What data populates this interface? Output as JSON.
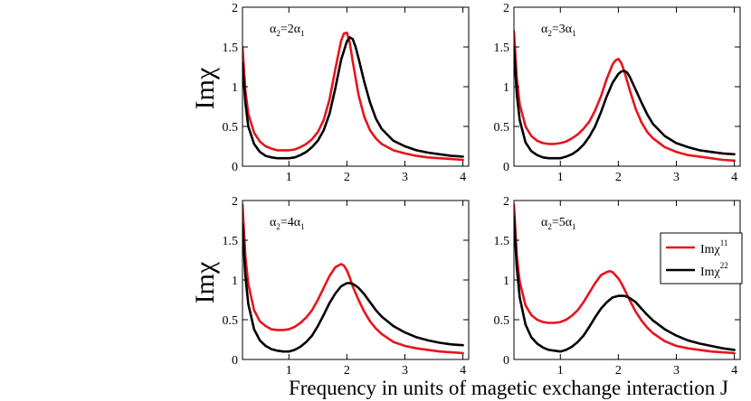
{
  "figure": {
    "xlabel": "Frequency in units of magetic exchange interaction J",
    "ylabel_top": "Imχ",
    "ylabel_bottom": "Imχ"
  },
  "legend": {
    "entries": [
      {
        "main": "Imχ",
        "sup": "11",
        "color": "#e8141c"
      },
      {
        "main": "Imχ",
        "sup": "22",
        "color": "#000000"
      }
    ]
  },
  "chart_data": [
    {
      "type": "line",
      "panel_label": {
        "a": "α",
        "sub1": "2",
        "eq": "=2α",
        "sub2": "1"
      },
      "xlim": [
        0.2,
        4.1
      ],
      "ylim": [
        0,
        2
      ],
      "xticks": [
        1,
        2,
        3,
        4
      ],
      "yticks": [
        0,
        0.5,
        1,
        1.5,
        2
      ],
      "xtick_labels": [
        "1",
        "2",
        "3",
        "4"
      ],
      "ytick_labels": [
        "0",
        "0.5",
        "1",
        "1.5",
        "2"
      ],
      "series": [
        {
          "name": "Imχ11",
          "color": "#e8141c",
          "x": [
            0.2,
            0.25,
            0.3,
            0.4,
            0.5,
            0.6,
            0.7,
            0.8,
            0.9,
            1.0,
            1.1,
            1.2,
            1.3,
            1.4,
            1.5,
            1.6,
            1.7,
            1.8,
            1.9,
            1.95,
            2.0,
            2.05,
            2.1,
            2.2,
            2.3,
            2.4,
            2.5,
            2.6,
            2.8,
            3.0,
            3.2,
            3.4,
            3.6,
            3.8,
            4.0
          ],
          "y": [
            1.5,
            0.95,
            0.66,
            0.42,
            0.31,
            0.25,
            0.22,
            0.2,
            0.2,
            0.2,
            0.21,
            0.24,
            0.28,
            0.34,
            0.43,
            0.58,
            0.84,
            1.22,
            1.58,
            1.67,
            1.68,
            1.55,
            1.32,
            0.9,
            0.62,
            0.45,
            0.35,
            0.28,
            0.2,
            0.16,
            0.13,
            0.11,
            0.1,
            0.09,
            0.08
          ]
        },
        {
          "name": "Imχ22",
          "color": "#000000",
          "x": [
            0.2,
            0.25,
            0.3,
            0.4,
            0.5,
            0.6,
            0.7,
            0.8,
            0.9,
            1.0,
            1.1,
            1.2,
            1.3,
            1.4,
            1.5,
            1.6,
            1.7,
            1.8,
            1.9,
            2.0,
            2.05,
            2.1,
            2.15,
            2.2,
            2.3,
            2.4,
            2.5,
            2.6,
            2.8,
            3.0,
            3.2,
            3.4,
            3.6,
            3.8,
            4.0
          ],
          "y": [
            1.3,
            0.8,
            0.5,
            0.28,
            0.18,
            0.13,
            0.11,
            0.1,
            0.1,
            0.1,
            0.11,
            0.14,
            0.18,
            0.24,
            0.32,
            0.45,
            0.66,
            0.98,
            1.34,
            1.57,
            1.62,
            1.6,
            1.5,
            1.36,
            1.06,
            0.8,
            0.6,
            0.47,
            0.32,
            0.25,
            0.2,
            0.17,
            0.15,
            0.13,
            0.12
          ]
        }
      ]
    },
    {
      "type": "line",
      "panel_label": {
        "a": "α",
        "sub1": "2",
        "eq": "=3α",
        "sub2": "1"
      },
      "xlim": [
        0.2,
        4.1
      ],
      "ylim": [
        0,
        2
      ],
      "xticks": [
        1,
        2,
        3,
        4
      ],
      "yticks": [
        0,
        0.5,
        1,
        1.5,
        2
      ],
      "xtick_labels": [
        "1",
        "2",
        "3",
        "4"
      ],
      "ytick_labels": [
        "0",
        "0.5",
        "1",
        "1.5",
        "2"
      ],
      "series": [
        {
          "name": "Imχ11",
          "color": "#e8141c",
          "x": [
            0.2,
            0.25,
            0.3,
            0.4,
            0.5,
            0.6,
            0.7,
            0.8,
            0.9,
            1.0,
            1.1,
            1.2,
            1.3,
            1.4,
            1.5,
            1.6,
            1.7,
            1.8,
            1.9,
            1.95,
            2.0,
            2.05,
            2.1,
            2.2,
            2.3,
            2.4,
            2.5,
            2.6,
            2.8,
            3.0,
            3.2,
            3.4,
            3.6,
            3.8,
            4.0
          ],
          "y": [
            1.7,
            1.1,
            0.78,
            0.5,
            0.38,
            0.32,
            0.29,
            0.28,
            0.28,
            0.29,
            0.31,
            0.35,
            0.4,
            0.47,
            0.56,
            0.7,
            0.88,
            1.1,
            1.28,
            1.33,
            1.35,
            1.3,
            1.2,
            0.95,
            0.72,
            0.55,
            0.43,
            0.35,
            0.24,
            0.18,
            0.14,
            0.12,
            0.1,
            0.08,
            0.07
          ]
        },
        {
          "name": "Imχ22",
          "color": "#000000",
          "x": [
            0.2,
            0.25,
            0.3,
            0.4,
            0.5,
            0.6,
            0.7,
            0.8,
            0.9,
            1.0,
            1.1,
            1.2,
            1.3,
            1.4,
            1.5,
            1.6,
            1.7,
            1.8,
            1.9,
            2.0,
            2.05,
            2.1,
            2.15,
            2.2,
            2.3,
            2.4,
            2.5,
            2.6,
            2.8,
            3.0,
            3.2,
            3.4,
            3.6,
            3.8,
            4.0
          ],
          "y": [
            1.5,
            0.9,
            0.58,
            0.3,
            0.19,
            0.14,
            0.11,
            0.1,
            0.1,
            0.1,
            0.12,
            0.15,
            0.2,
            0.27,
            0.37,
            0.5,
            0.68,
            0.88,
            1.05,
            1.16,
            1.19,
            1.2,
            1.18,
            1.12,
            0.96,
            0.8,
            0.65,
            0.53,
            0.38,
            0.29,
            0.24,
            0.2,
            0.18,
            0.16,
            0.15
          ]
        }
      ]
    },
    {
      "type": "line",
      "panel_label": {
        "a": "α",
        "sub1": "2",
        "eq": "=4α",
        "sub2": "1"
      },
      "xlim": [
        0.2,
        4.1
      ],
      "ylim": [
        0,
        2
      ],
      "xticks": [
        1,
        2,
        3,
        4
      ],
      "yticks": [
        0,
        0.5,
        1,
        1.5,
        2
      ],
      "xtick_labels": [
        "1",
        "2",
        "3",
        "4"
      ],
      "ytick_labels": [
        "0",
        "0.5",
        "1",
        "1.5",
        "2"
      ],
      "series": [
        {
          "name": "Imχ11",
          "color": "#e8141c",
          "x": [
            0.2,
            0.25,
            0.3,
            0.4,
            0.5,
            0.6,
            0.7,
            0.8,
            0.9,
            1.0,
            1.1,
            1.2,
            1.3,
            1.4,
            1.5,
            1.6,
            1.7,
            1.8,
            1.9,
            1.95,
            2.0,
            2.05,
            2.1,
            2.2,
            2.3,
            2.4,
            2.5,
            2.6,
            2.8,
            3.0,
            3.2,
            3.4,
            3.6,
            3.8,
            4.0
          ],
          "y": [
            1.95,
            1.3,
            0.95,
            0.62,
            0.48,
            0.42,
            0.38,
            0.37,
            0.37,
            0.38,
            0.41,
            0.46,
            0.53,
            0.62,
            0.75,
            0.9,
            1.05,
            1.16,
            1.2,
            1.18,
            1.12,
            1.03,
            0.92,
            0.75,
            0.6,
            0.48,
            0.39,
            0.32,
            0.22,
            0.17,
            0.14,
            0.12,
            0.1,
            0.09,
            0.08
          ]
        },
        {
          "name": "Imχ22",
          "color": "#000000",
          "x": [
            0.2,
            0.25,
            0.3,
            0.4,
            0.5,
            0.6,
            0.7,
            0.8,
            0.9,
            1.0,
            1.1,
            1.2,
            1.3,
            1.4,
            1.5,
            1.6,
            1.7,
            1.8,
            1.9,
            2.0,
            2.05,
            2.1,
            2.15,
            2.2,
            2.3,
            2.4,
            2.5,
            2.6,
            2.8,
            3.0,
            3.2,
            3.4,
            3.6,
            3.8,
            4.0
          ],
          "y": [
            1.7,
            1.05,
            0.7,
            0.38,
            0.24,
            0.17,
            0.13,
            0.11,
            0.1,
            0.1,
            0.12,
            0.16,
            0.22,
            0.3,
            0.42,
            0.56,
            0.71,
            0.83,
            0.92,
            0.96,
            0.96,
            0.95,
            0.93,
            0.9,
            0.82,
            0.72,
            0.62,
            0.54,
            0.42,
            0.34,
            0.28,
            0.24,
            0.21,
            0.19,
            0.18
          ]
        }
      ]
    },
    {
      "type": "line",
      "panel_label": {
        "a": "α",
        "sub1": "2",
        "eq": "=5α",
        "sub2": "1"
      },
      "xlim": [
        0.2,
        4.1
      ],
      "ylim": [
        0,
        2
      ],
      "xticks": [
        1,
        2,
        3,
        4
      ],
      "yticks": [
        0,
        0.5,
        1,
        1.5,
        2
      ],
      "xtick_labels": [
        "1",
        "2",
        "3",
        "4"
      ],
      "ytick_labels": [
        "0",
        "0.5",
        "1",
        "1.5",
        "2"
      ],
      "series": [
        {
          "name": "Imχ11",
          "color": "#e8141c",
          "x": [
            0.2,
            0.25,
            0.3,
            0.4,
            0.5,
            0.6,
            0.7,
            0.8,
            0.9,
            1.0,
            1.1,
            1.2,
            1.3,
            1.4,
            1.5,
            1.6,
            1.7,
            1.8,
            1.85,
            1.9,
            2.0,
            2.05,
            2.1,
            2.2,
            2.3,
            2.4,
            2.5,
            2.6,
            2.8,
            3.0,
            3.2,
            3.4,
            3.6,
            3.8,
            4.0
          ],
          "y": [
            1.95,
            1.3,
            0.98,
            0.68,
            0.56,
            0.5,
            0.47,
            0.46,
            0.46,
            0.47,
            0.5,
            0.55,
            0.62,
            0.72,
            0.84,
            0.96,
            1.06,
            1.1,
            1.11,
            1.1,
            1.02,
            0.96,
            0.89,
            0.74,
            0.6,
            0.49,
            0.4,
            0.33,
            0.23,
            0.17,
            0.14,
            0.12,
            0.1,
            0.09,
            0.08
          ]
        },
        {
          "name": "Imχ22",
          "color": "#000000",
          "x": [
            0.2,
            0.25,
            0.3,
            0.4,
            0.5,
            0.6,
            0.7,
            0.8,
            0.9,
            1.0,
            1.1,
            1.2,
            1.3,
            1.4,
            1.5,
            1.6,
            1.7,
            1.8,
            1.9,
            2.0,
            2.05,
            2.1,
            2.15,
            2.2,
            2.3,
            2.4,
            2.5,
            2.6,
            2.8,
            3.0,
            3.2,
            3.4,
            3.6,
            3.8,
            4.0
          ],
          "y": [
            1.8,
            1.15,
            0.78,
            0.44,
            0.28,
            0.2,
            0.15,
            0.12,
            0.11,
            0.1,
            0.12,
            0.16,
            0.22,
            0.3,
            0.41,
            0.53,
            0.64,
            0.72,
            0.78,
            0.8,
            0.8,
            0.8,
            0.79,
            0.77,
            0.72,
            0.64,
            0.56,
            0.49,
            0.38,
            0.3,
            0.24,
            0.2,
            0.17,
            0.14,
            0.12
          ]
        }
      ]
    }
  ]
}
